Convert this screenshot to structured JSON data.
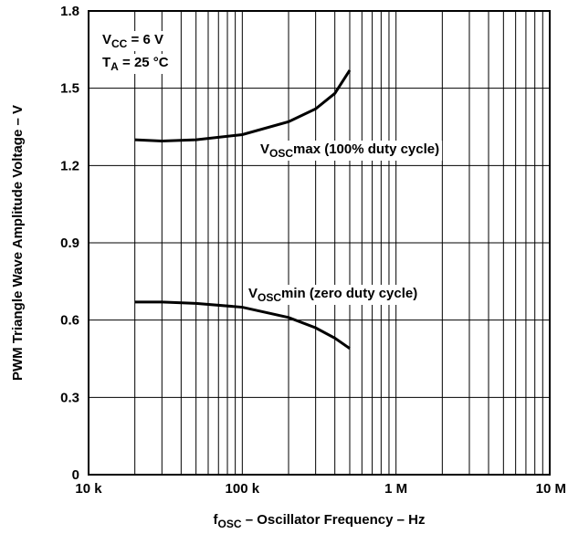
{
  "chart_data": {
    "type": "line",
    "xlabel": {
      "main": "f",
      "sub": "OSC",
      "rest": " – Oscillator Frequency – Hz"
    },
    "ylabel": "PWM Triangle Wave Amplitude Voltage – V",
    "log_x": true,
    "grid": true,
    "xlim": [
      10000,
      10000000
    ],
    "xticks": [
      {
        "value": 10000,
        "label": "10 k"
      },
      {
        "value": 100000,
        "label": "100 k"
      },
      {
        "value": 1000000,
        "label": "1 M"
      },
      {
        "value": 10000000,
        "label": "10 M"
      }
    ],
    "ylim": [
      0,
      1.8
    ],
    "yticks": [
      0,
      0.3,
      0.6,
      0.9,
      1.2,
      1.5,
      1.8
    ],
    "annotations": [
      {
        "main": "V",
        "sub": "CC",
        "rest": " = 6 V"
      },
      {
        "main": "T",
        "sub": "A",
        "rest": " = 25 °C"
      }
    ],
    "x": [
      20000,
      30000,
      50000,
      100000,
      200000,
      300000,
      400000,
      500000
    ],
    "series": [
      {
        "name": {
          "main": "V",
          "sub": "OSC",
          "rest": "max (100% duty cycle)"
        },
        "color": "#000000",
        "values": [
          1.3,
          1.295,
          1.3,
          1.32,
          1.37,
          1.42,
          1.48,
          1.57
        ]
      },
      {
        "name": {
          "main": "V",
          "sub": "OSC",
          "rest": "min (zero duty cycle)"
        },
        "color": "#000000",
        "values": [
          0.67,
          0.67,
          0.665,
          0.65,
          0.61,
          0.57,
          0.53,
          0.49
        ]
      }
    ]
  }
}
